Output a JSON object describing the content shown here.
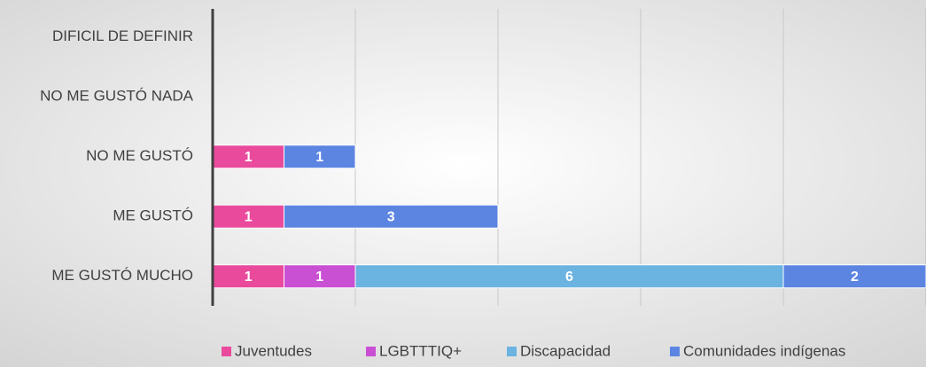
{
  "chart_data": {
    "type": "bar",
    "orientation": "horizontal",
    "stacked": true,
    "categories": [
      "DIFICIL DE DEFINIR",
      "NO ME GUSTÓ NADA",
      "NO ME GUSTÓ",
      "ME GUSTÓ",
      "ME GUSTÓ MUCHO"
    ],
    "series": [
      {
        "name": "Juventudes",
        "color": "#e94a9c",
        "values": [
          null,
          null,
          1,
          1,
          1
        ]
      },
      {
        "name": "LGBTTTIQ+",
        "color": "#c94fd3",
        "values": [
          null,
          null,
          null,
          null,
          1
        ]
      },
      {
        "name": "Discapacidad",
        "color": "#6bb3e0",
        "values": [
          null,
          null,
          null,
          null,
          6
        ]
      },
      {
        "name": "Comunidades indígenas",
        "color": "#5c85e2",
        "values": [
          null,
          null,
          1,
          3,
          2
        ]
      }
    ],
    "xlim": [
      0,
      10
    ],
    "xticks": [
      0,
      2,
      4,
      6,
      8,
      10
    ],
    "grid": true,
    "legend": "bottom"
  }
}
